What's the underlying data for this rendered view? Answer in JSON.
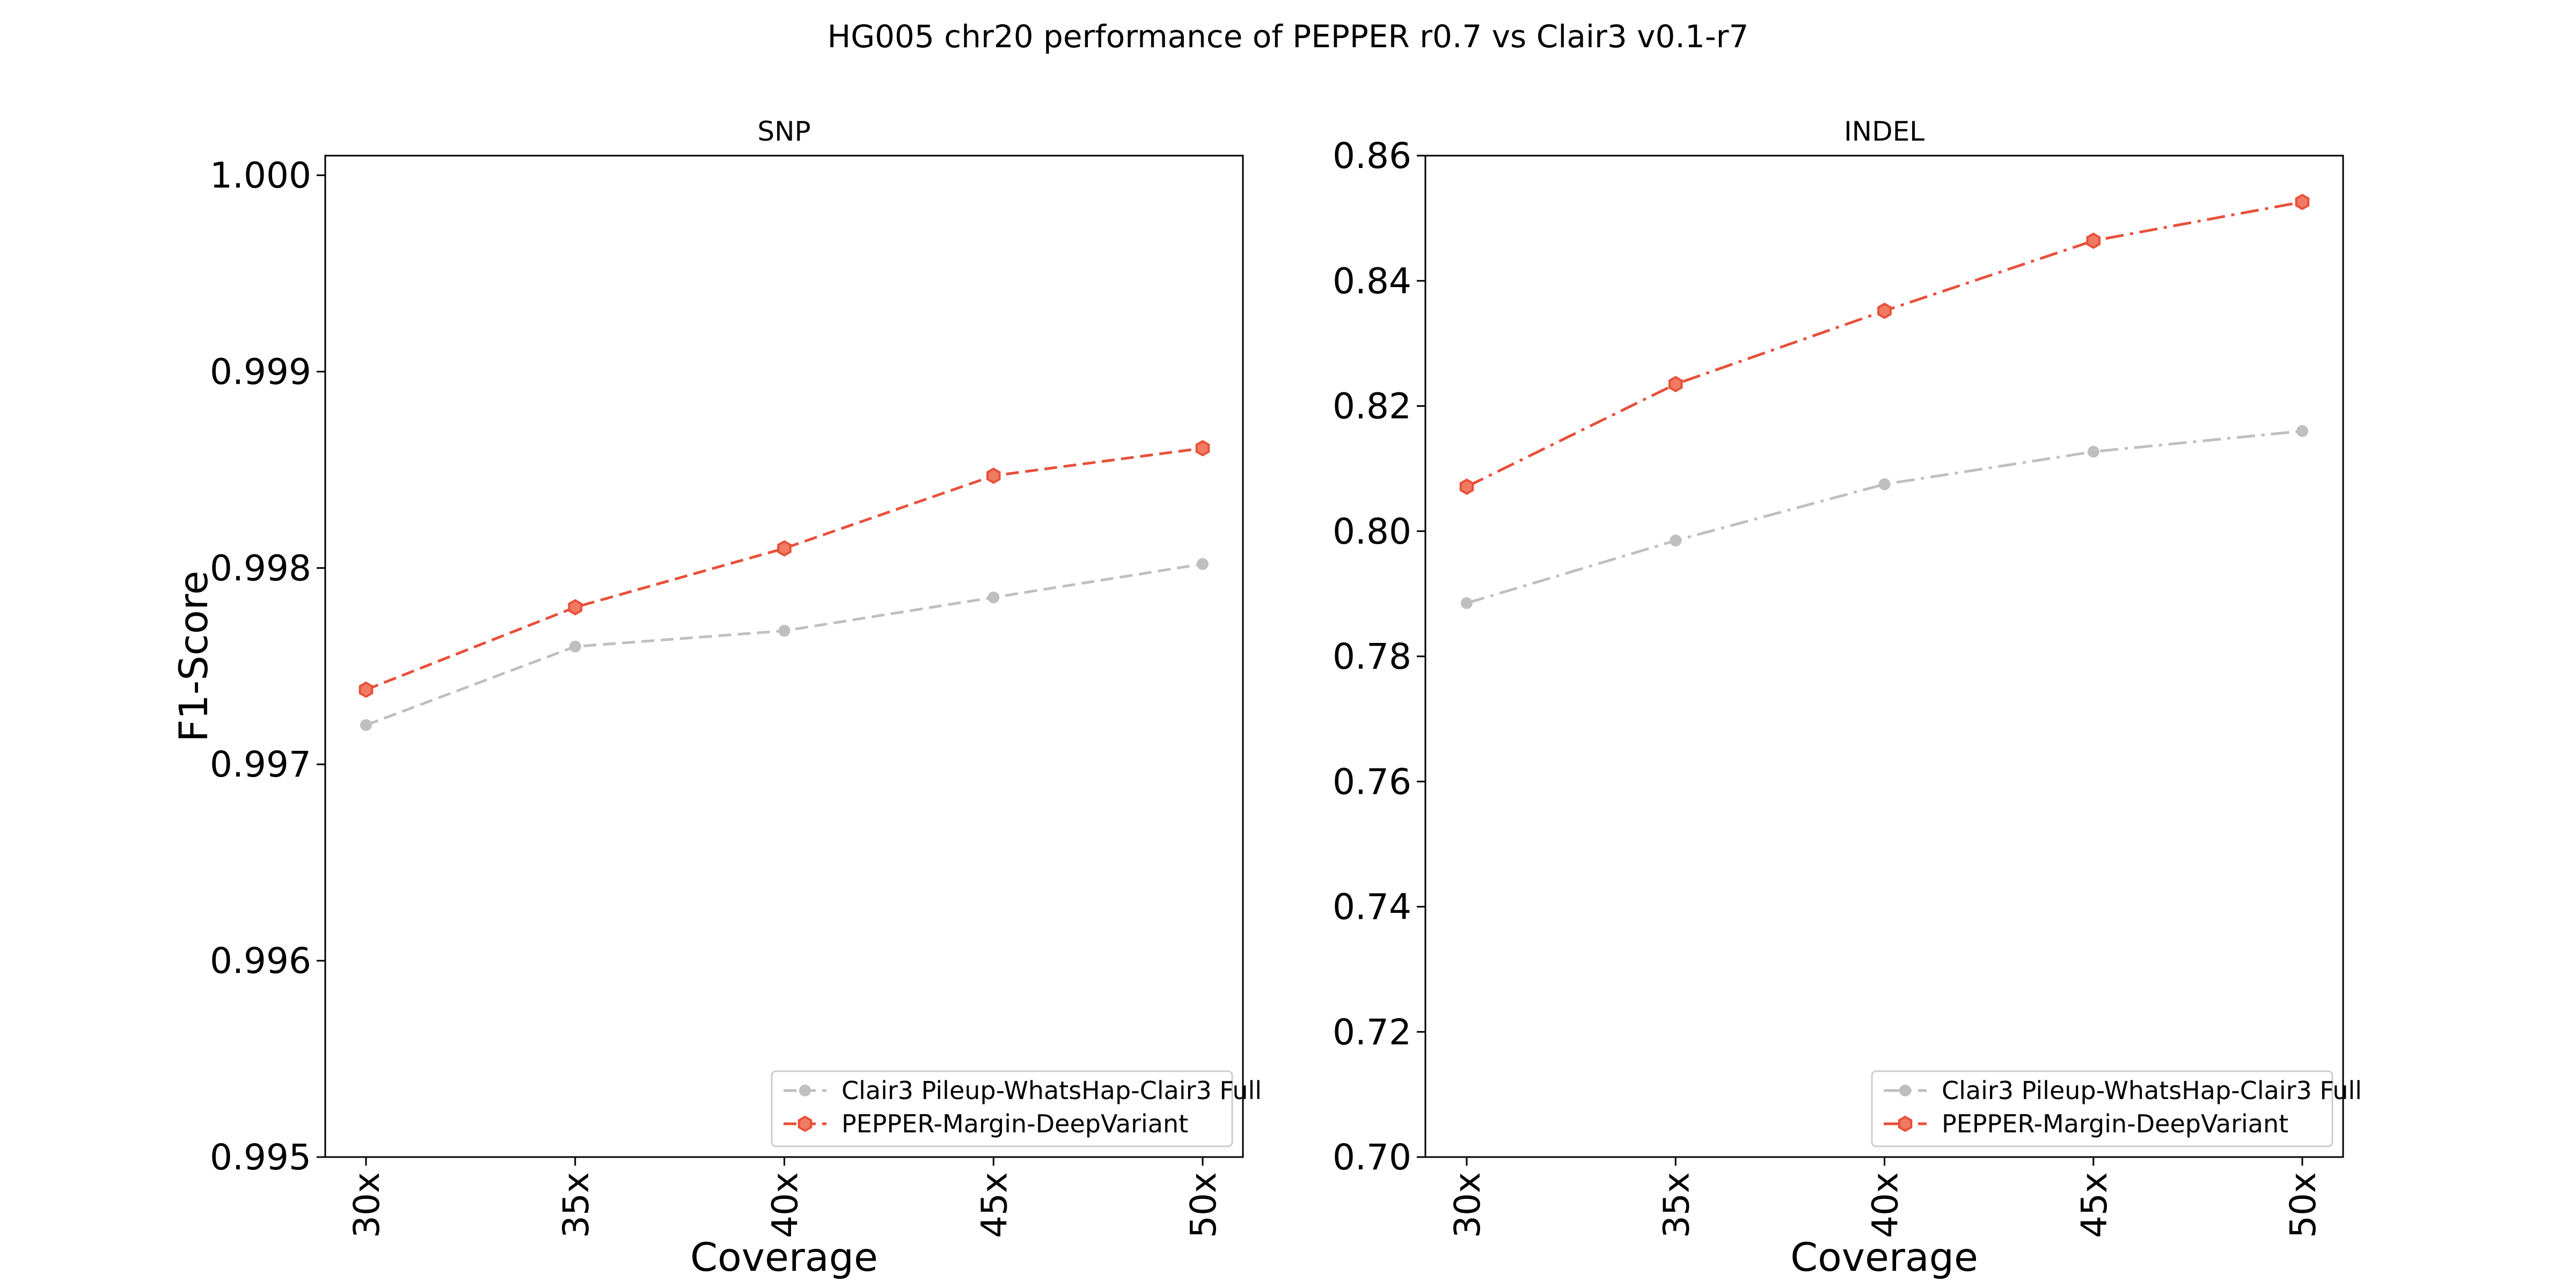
{
  "figure": {
    "title": "HG005 chr20 performance of PEPPER r0.7 vs Clair3 v0.1-r7"
  },
  "colors": {
    "clair3": "#bfbfbf",
    "pepper": "#e8503a",
    "pepper_fill": "#f07a62"
  },
  "chart_data": [
    {
      "type": "line",
      "title": "SNP",
      "xlabel": "Coverage",
      "ylabel": "F1-Score",
      "categories": [
        "30x",
        "35x",
        "40x",
        "45x",
        "50x"
      ],
      "ylim": [
        0.995,
        1.0001
      ],
      "yticks": [
        "0.995",
        "0.996",
        "0.997",
        "0.998",
        "0.999",
        "1.000"
      ],
      "grid": false,
      "legend_position": "lower-right",
      "series": [
        {
          "name": "Clair3 Pileup-WhatsHap-Clair3 Full",
          "values": [
            0.9972,
            0.9976,
            0.99768,
            0.99785,
            0.99802
          ],
          "style": "dashed",
          "marker": "circle",
          "color": "#bfbfbf"
        },
        {
          "name": "PEPPER-Margin-DeepVariant",
          "values": [
            0.99738,
            0.9978,
            0.9981,
            0.99847,
            0.99861
          ],
          "style": "dashed",
          "marker": "hexagon",
          "color": "#e8503a"
        }
      ]
    },
    {
      "type": "line",
      "title": "INDEL",
      "xlabel": "Coverage",
      "ylabel": "",
      "categories": [
        "30x",
        "35x",
        "40x",
        "45x",
        "50x"
      ],
      "ylim": [
        0.7,
        0.86
      ],
      "yticks": [
        "0.70",
        "0.72",
        "0.74",
        "0.76",
        "0.78",
        "0.80",
        "0.82",
        "0.84",
        "0.86"
      ],
      "grid": false,
      "legend_position": "lower-right",
      "series": [
        {
          "name": "Clair3 Pileup-WhatsHap-Clair3 Full",
          "values": [
            0.7885,
            0.7985,
            0.8075,
            0.8127,
            0.816
          ],
          "style": "dashdot",
          "marker": "circle",
          "color": "#bfbfbf"
        },
        {
          "name": "PEPPER-Margin-DeepVariant",
          "values": [
            0.8071,
            0.8235,
            0.8352,
            0.8464,
            0.8526
          ],
          "style": "dashdot",
          "marker": "hexagon",
          "color": "#e8503a"
        }
      ]
    }
  ]
}
